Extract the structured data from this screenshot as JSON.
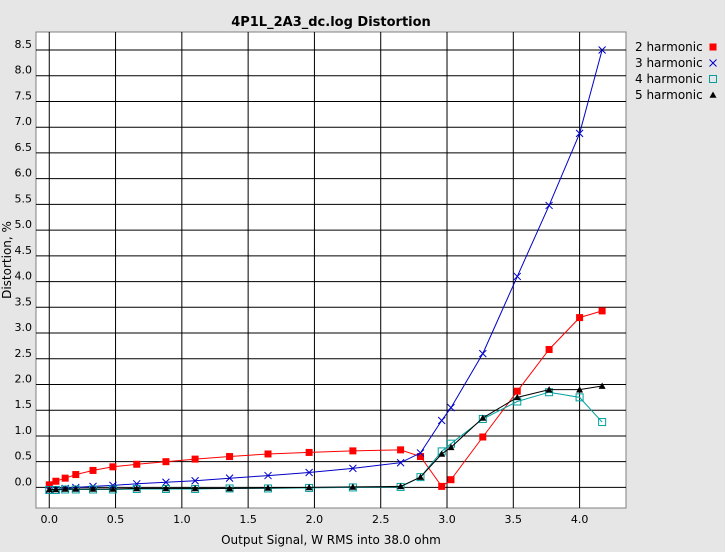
{
  "chart_data": {
    "type": "line",
    "title": "4P1L_2A3_dc.log Distortion",
    "xlabel": "Output Signal, W RMS into 38.0 ohm",
    "ylabel": "Distortion, %",
    "xlim": [
      -0.1,
      4.35
    ],
    "ylim": [
      -0.4,
      8.85
    ],
    "xticks": [
      "0.0",
      "0.5",
      "1.0",
      "1.5",
      "2.0",
      "2.5",
      "3.0",
      "3.5",
      "4.0"
    ],
    "yticks": [
      "0.0",
      "0.5",
      "1.0",
      "1.5",
      "2.0",
      "2.5",
      "3.0",
      "3.5",
      "4.0",
      "4.5",
      "5.0",
      "5.5",
      "6.0",
      "6.5",
      "7.0",
      "7.5",
      "8.0",
      "8.5"
    ],
    "grid": true,
    "legend_position": "top-right",
    "series": [
      {
        "name": "2 harmonic",
        "color": "#ff0000",
        "marker": "filled-square",
        "x": [
          0.0,
          0.05,
          0.12,
          0.2,
          0.33,
          0.48,
          0.66,
          0.88,
          1.1,
          1.36,
          1.65,
          1.96,
          2.29,
          2.65,
          2.8,
          2.96,
          3.03,
          3.27,
          3.53,
          3.77,
          4.0,
          4.17
        ],
        "y": [
          0.05,
          0.12,
          0.18,
          0.25,
          0.33,
          0.4,
          0.45,
          0.5,
          0.55,
          0.6,
          0.65,
          0.68,
          0.71,
          0.73,
          0.6,
          0.02,
          0.15,
          0.98,
          1.87,
          2.68,
          3.3,
          3.43
        ]
      },
      {
        "name": "3 harmonic",
        "color": "#0000c8",
        "marker": "x",
        "x": [
          0.0,
          0.05,
          0.12,
          0.2,
          0.33,
          0.48,
          0.66,
          0.88,
          1.1,
          1.36,
          1.65,
          1.96,
          2.29,
          2.65,
          2.8,
          2.96,
          3.03,
          3.27,
          3.53,
          3.77,
          4.0,
          4.17
        ],
        "y": [
          -0.05,
          -0.04,
          -0.02,
          0.0,
          0.02,
          0.04,
          0.07,
          0.1,
          0.13,
          0.18,
          0.23,
          0.29,
          0.37,
          0.48,
          0.67,
          1.3,
          1.55,
          2.6,
          4.1,
          5.48,
          6.88,
          8.5
        ]
      },
      {
        "name": "4 harmonic",
        "color": "#00a0a0",
        "marker": "open-square",
        "x": [
          0.0,
          0.05,
          0.12,
          0.2,
          0.33,
          0.48,
          0.66,
          0.88,
          1.1,
          1.36,
          1.65,
          1.96,
          2.29,
          2.65,
          2.8,
          2.96,
          3.03,
          3.27,
          3.53,
          3.77,
          4.0,
          4.17
        ],
        "y": [
          -0.05,
          -0.05,
          -0.04,
          -0.04,
          -0.04,
          -0.04,
          -0.03,
          -0.03,
          -0.03,
          -0.02,
          -0.02,
          -0.01,
          0.0,
          0.01,
          0.2,
          0.7,
          0.85,
          1.33,
          1.67,
          1.85,
          1.75,
          1.27
        ]
      },
      {
        "name": "5 harmonic",
        "color": "#000000",
        "marker": "filled-triangle",
        "x": [
          0.0,
          0.05,
          0.12,
          0.2,
          0.33,
          0.48,
          0.66,
          0.88,
          1.1,
          1.36,
          1.65,
          1.96,
          2.29,
          2.65,
          2.8,
          2.96,
          3.03,
          3.27,
          3.53,
          3.77,
          4.0,
          4.17
        ],
        "y": [
          -0.04,
          -0.04,
          -0.03,
          -0.03,
          -0.03,
          -0.03,
          -0.02,
          -0.02,
          -0.02,
          -0.02,
          -0.01,
          0.0,
          0.01,
          0.02,
          0.2,
          0.65,
          0.78,
          1.35,
          1.75,
          1.9,
          1.9,
          1.97
        ]
      }
    ]
  }
}
